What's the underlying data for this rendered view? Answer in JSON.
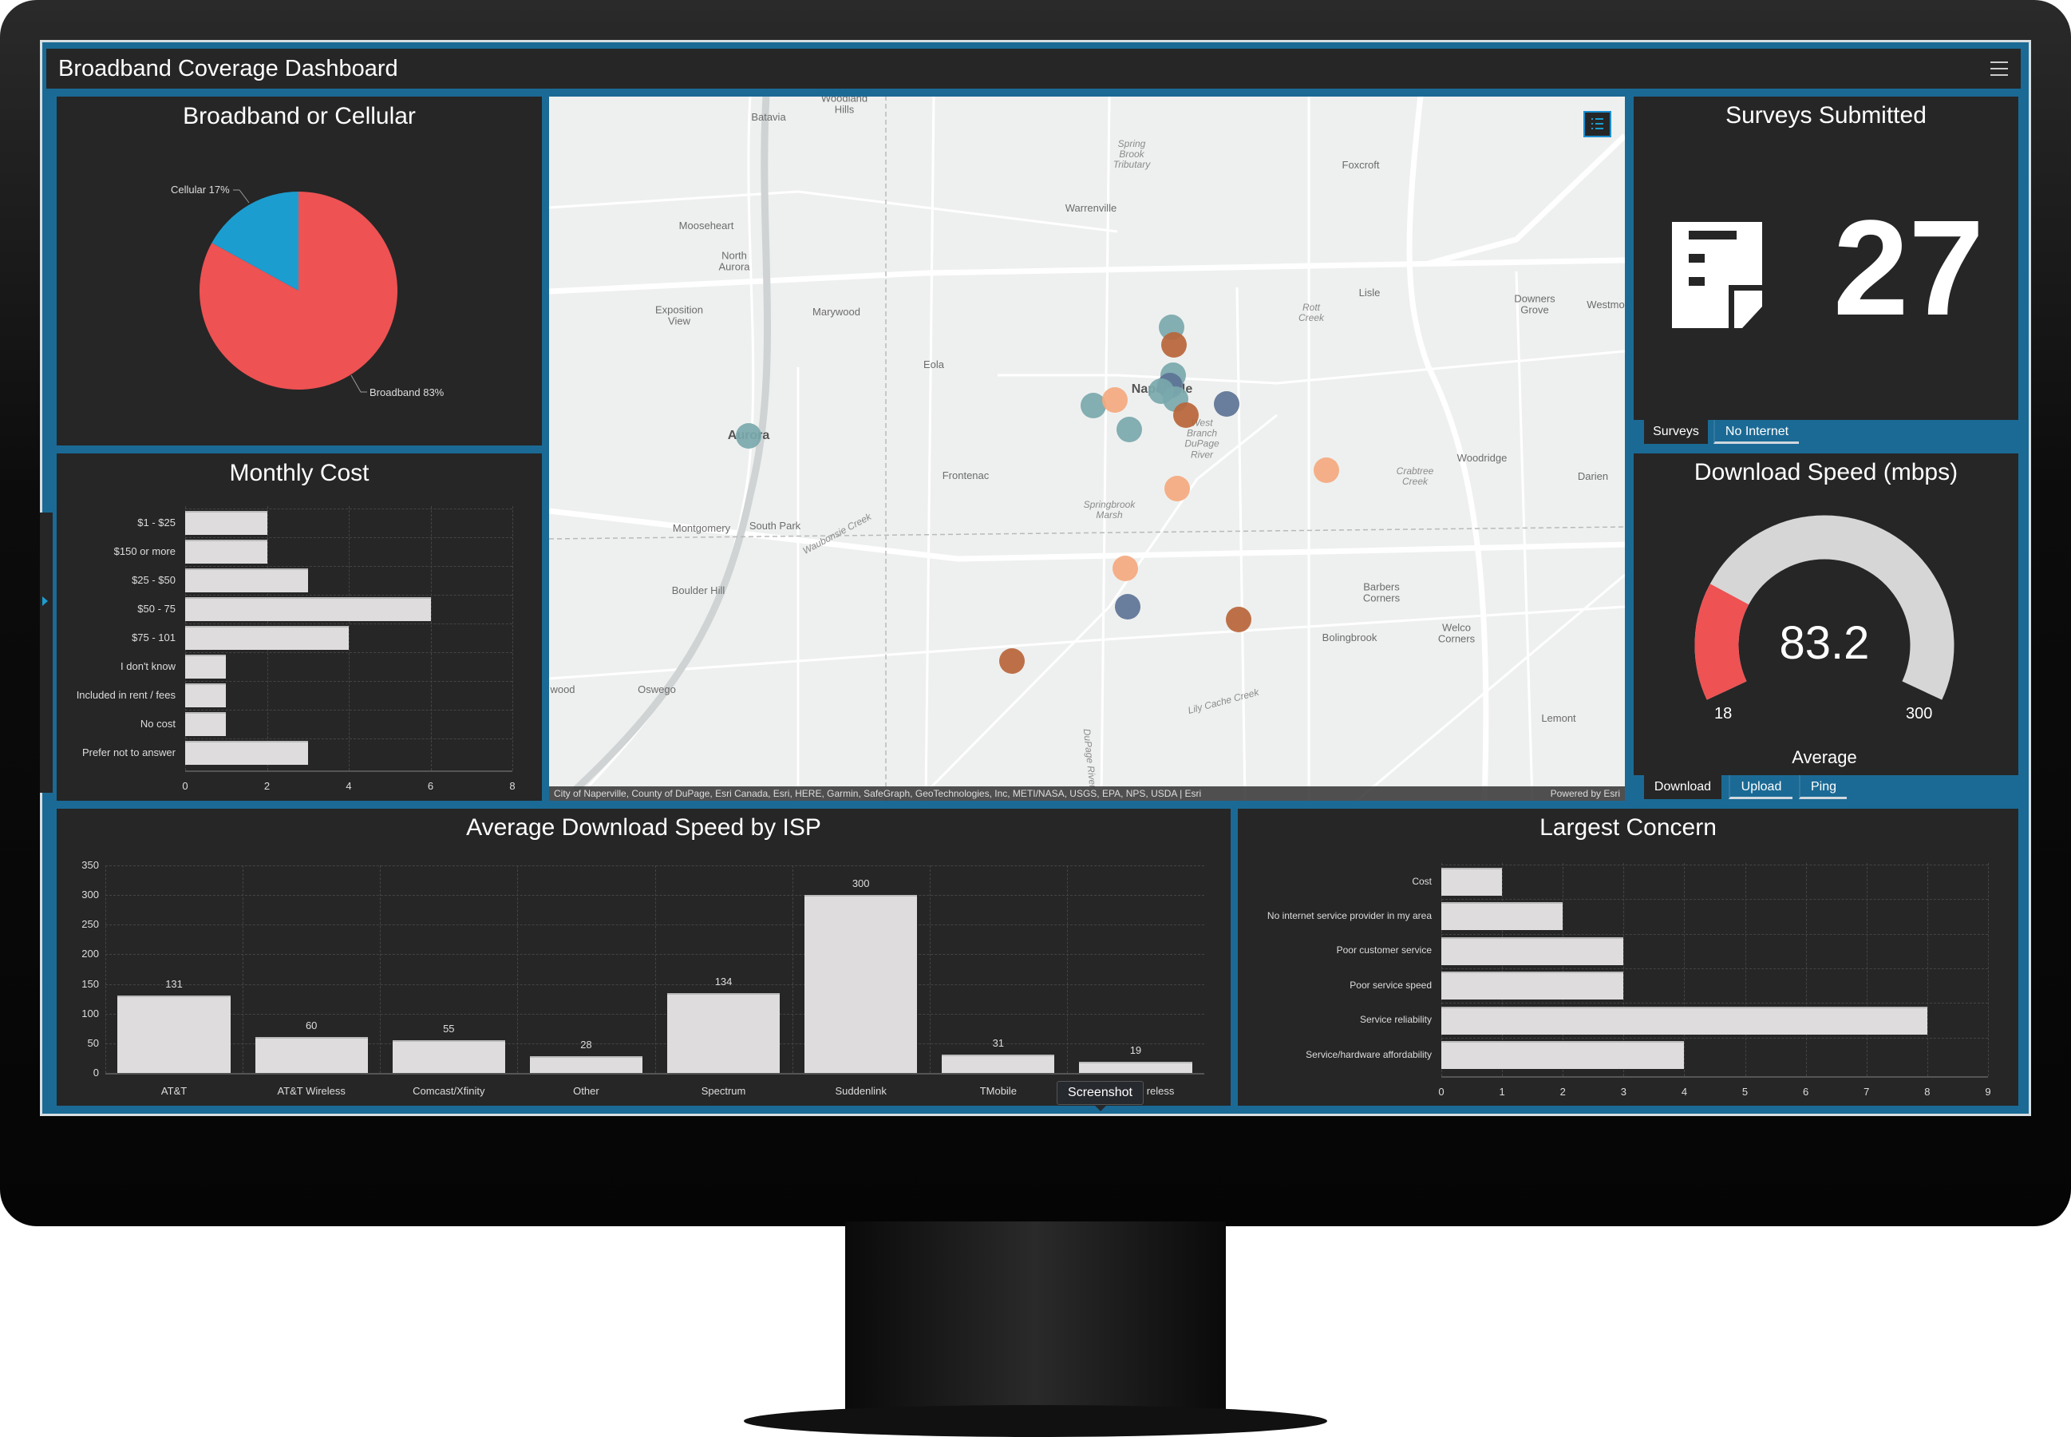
{
  "header": {
    "title": "Broadband Coverage Dashboard",
    "menu_icon": "hamburger-menu-icon"
  },
  "colors": {
    "accent": "#1b6a95",
    "panel": "#262626",
    "broadband": "#ee5253",
    "cellular": "#1c9dd0",
    "bar": "#dedcdd",
    "gauge_fill": "#ee5253",
    "gauge_track": "#d6d6d6",
    "teal": "#7aa8ad",
    "dark_orange": "#b9653a",
    "light_orange": "#f4a97f",
    "slate_blue": "#5d7396"
  },
  "pie_panel": {
    "title": "Broadband or Cellular"
  },
  "monthly_panel": {
    "title": "Monthly Cost"
  },
  "isp_panel": {
    "title": "Average Download Speed by ISP"
  },
  "concern_panel": {
    "title": "Largest Concern"
  },
  "chart_data": [
    {
      "type": "pie",
      "title": "Broadband or Cellular",
      "labels": [
        "Broadband",
        "Cellular"
      ],
      "values": [
        83,
        17
      ],
      "slice_labels": [
        "Broadband 83%",
        "Cellular 17%"
      ],
      "colors": [
        "#ee5253",
        "#1c9dd0"
      ]
    },
    {
      "type": "bar",
      "orientation": "horizontal",
      "title": "Monthly Cost",
      "categories": [
        "$1 - $25",
        "$150 or more",
        "$25 - $50",
        "$50 - 75",
        "$75 - 101",
        "I don't know",
        "Included in rent / fees",
        "No cost",
        "Prefer not to answer"
      ],
      "values": [
        2,
        2,
        3,
        6,
        4,
        1,
        1,
        1,
        3
      ],
      "xlim": [
        0,
        8
      ],
      "xticks": [
        0,
        2,
        4,
        6,
        8
      ],
      "grid": true
    },
    {
      "type": "bar",
      "orientation": "vertical",
      "title": "Average Download Speed by ISP",
      "categories": [
        "AT&T",
        "AT&T Wireless",
        "Comcast/Xfinity",
        "Other",
        "Spectrum",
        "Suddenlink",
        "TMobile",
        "reless"
      ],
      "values": [
        131,
        60,
        55,
        28,
        134,
        300,
        31,
        19
      ],
      "data_labels": [
        "131",
        "60",
        "55",
        "28",
        "134",
        "300",
        "31",
        "19"
      ],
      "ylim": [
        0,
        350
      ],
      "yticks": [
        0,
        50,
        100,
        150,
        200,
        250,
        300,
        350
      ],
      "grid": true
    },
    {
      "type": "bar",
      "orientation": "horizontal",
      "title": "Largest Concern",
      "categories": [
        "Cost",
        "No internet service provider in my area",
        "Poor customer service",
        "Poor service speed",
        "Service reliability",
        "Service/hardware affordability"
      ],
      "values": [
        1,
        2,
        3,
        3,
        8,
        4
      ],
      "xlim": [
        0,
        9
      ],
      "xticks": [
        0,
        1,
        2,
        3,
        4,
        5,
        6,
        7,
        8,
        9
      ],
      "grid": true
    }
  ],
  "map": {
    "labels": [
      "Batavia",
      "Woodland\nHills",
      "Foxcroft",
      "Warrenville",
      "Mooseheart",
      "North\nAurora",
      "Exposition\nView",
      "Marywood",
      "Lisle",
      "Downers\nGrove",
      "Westmo",
      "Eola",
      "Naperville",
      "Aurora",
      "Frontenac",
      "Woodridge",
      "Darien",
      "Montgomery",
      "South Park",
      "Boulder Hill",
      "Barbers\nCorners",
      "Bolingbrook",
      "Welco\nCorners",
      "Oswego",
      "Lemont",
      "wood"
    ],
    "water_labels": [
      "Spring\nBrook\nTributary",
      "Rott\nCreek",
      "West\nBranch\nDuPage\nRiver",
      "Crabtree\nCreek",
      "Springbrook\nMarsh",
      "Waubonsie Creek",
      "Lily Cache Creek",
      "DuPage River"
    ],
    "attribution": "City of Naperville, County of DuPage, Esri Canada, Esri, HERE, Garmin, SafeGraph, GeoTechnologies, Inc, METI/NASA, USGS, EPA, NPS, USDA | Esri",
    "powered_by": "Powered by Esri",
    "legend_icon": "legend-list-icon"
  },
  "surveys": {
    "title": "Surveys Submitted",
    "value": "27",
    "icon": "survey-form-icon",
    "tabs": [
      "Surveys",
      "No Internet"
    ]
  },
  "gauge": {
    "title": "Download Speed (mbps)",
    "value": 83.2,
    "value_text": "83.2",
    "min": 18,
    "max": 300,
    "min_text": "18",
    "max_text": "300",
    "label": "Average",
    "tabs": [
      "Download",
      "Upload",
      "Ping"
    ]
  },
  "tooltip": "Screenshot"
}
